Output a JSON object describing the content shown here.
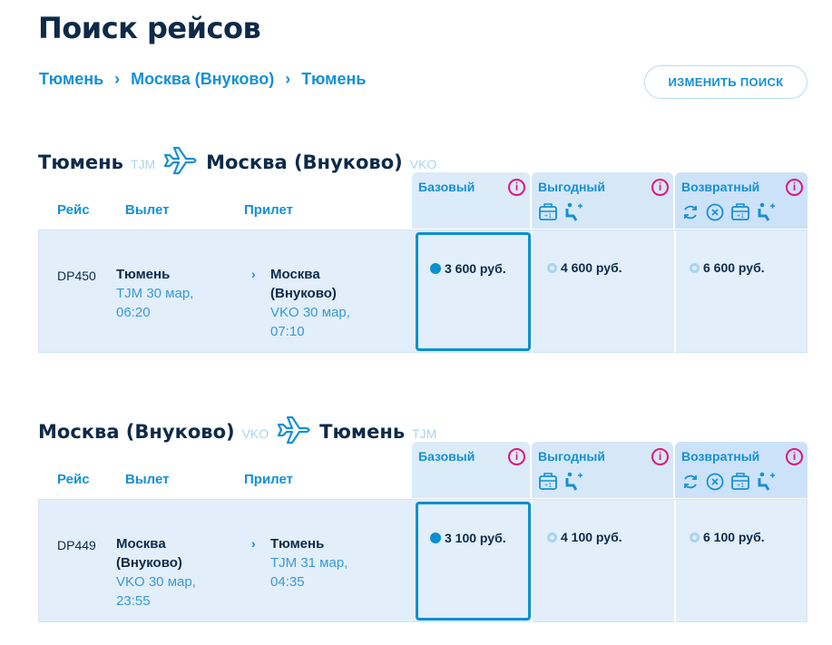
{
  "page_title": "Поиск рейсов",
  "breadcrumb": [
    "Тюмень",
    "Москва (Внуково)",
    "Тюмень"
  ],
  "breadcrumb_separator": "›",
  "change_search_label": "ИЗМЕНИТЬ ПОИСК",
  "columns": {
    "flight": "Рейс",
    "departure": "Вылет",
    "arrival": "Прилет"
  },
  "fares": {
    "basic": "Базовый",
    "value": "Выгодный",
    "refundable": "Возвратный",
    "info": "i"
  },
  "colors": {
    "accent": "#1590d4",
    "info": "#e0157d",
    "selected_border": "#0a8fd0"
  },
  "sections": [
    {
      "from": "Тюмень",
      "from_code": "TJM",
      "to": "Москва (Внуково)",
      "to_code": "VKO",
      "flight": "DP450",
      "dep_city": "Тюмень",
      "dep_line1": "TJM 30 мар,",
      "dep_line2": "06:20",
      "arr_city_1": "Москва",
      "arr_city_2": "(Внуково)",
      "arr_line1": "VKO 30 мар,",
      "arr_line2": "07:10",
      "prices": [
        "3 600 руб.",
        "4 600 руб.",
        "6 600 руб."
      ],
      "selected": "basic"
    },
    {
      "from": "Москва (Внуково)",
      "from_code": "VKO",
      "to": "Тюмень",
      "to_code": "TJM",
      "flight": "DP449",
      "dep_city_1": "Москва",
      "dep_city_2": "(Внуково)",
      "dep_line1": "VKO 30 мар,",
      "dep_line2": "23:55",
      "arr_city": "Тюмень",
      "arr_line1": "TJM 31 мар,",
      "arr_line2": "04:35",
      "prices": [
        "3 100 руб.",
        "4 100 руб.",
        "6 100 руб."
      ],
      "selected": "basic"
    }
  ]
}
